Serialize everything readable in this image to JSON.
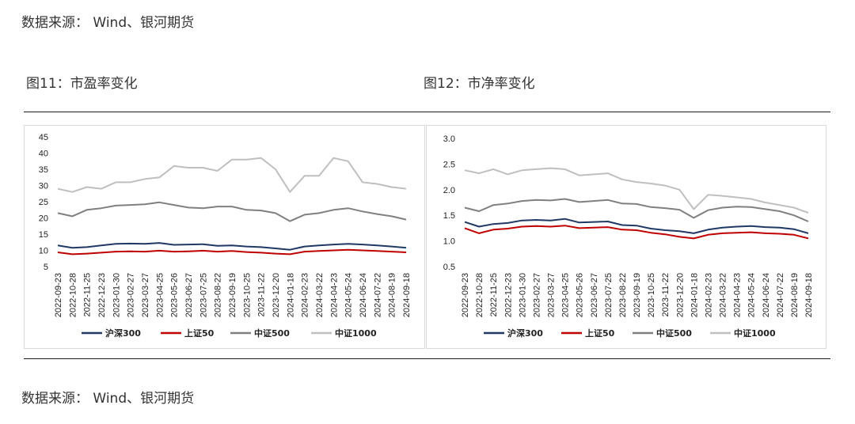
{
  "source_top": "数据来源： Wind、银河期货",
  "source_bottom": "数据来源： Wind、银河期货",
  "fig11_title": "图11：市盈率变化",
  "fig12_title": "图12：市净率变化",
  "colors": {
    "hs300": "#1f3864",
    "sz50": "#c00000",
    "zz500": "#808080",
    "zz1000": "#bfbfbf"
  },
  "chart_data": [
    {
      "type": "line",
      "title": "图11：市盈率变化",
      "x": [
        "2022-09-23",
        "2022-10-28",
        "2022-11-25",
        "2022-12-23",
        "2023-01-30",
        "2023-02-27",
        "2023-03-27",
        "2023-04-25",
        "2023-05-26",
        "2023-06-27",
        "2023-07-25",
        "2023-08-22",
        "2023-09-19",
        "2023-10-25",
        "2023-11-22",
        "2023-12-20",
        "2024-01-18",
        "2024-02-23",
        "2024-03-22",
        "2024-04-23",
        "2024-05-24",
        "2024-06-24",
        "2024-07-22",
        "2024-08-19",
        "2024-09-18"
      ],
      "ylim": [
        5,
        45
      ],
      "yticks": [
        5,
        10,
        15,
        20,
        25,
        30,
        35,
        40,
        45
      ],
      "legend_position": "bottom",
      "series": [
        {
          "name": "沪深300",
          "color": "#1f3864",
          "values": [
            11.5,
            10.8,
            11.0,
            11.5,
            12.0,
            12.1,
            12.0,
            12.3,
            11.7,
            11.8,
            11.9,
            11.4,
            11.5,
            11.2,
            11.0,
            10.6,
            10.2,
            11.2,
            11.5,
            11.8,
            12.0,
            11.8,
            11.5,
            11.2,
            10.8
          ]
        },
        {
          "name": "上证50",
          "color": "#c00000",
          "values": [
            9.4,
            8.8,
            9.0,
            9.3,
            9.6,
            9.7,
            9.6,
            9.9,
            9.6,
            9.7,
            9.9,
            9.6,
            9.8,
            9.5,
            9.3,
            9.0,
            8.8,
            9.6,
            9.8,
            10.0,
            10.2,
            10.0,
            9.8,
            9.6,
            9.4
          ]
        },
        {
          "name": "中证500",
          "color": "#808080",
          "values": [
            21.5,
            20.5,
            22.5,
            23.0,
            23.8,
            24.0,
            24.2,
            24.8,
            24.0,
            23.2,
            23.0,
            23.5,
            23.5,
            22.5,
            22.3,
            21.5,
            19.0,
            21.0,
            21.5,
            22.5,
            23.0,
            22.0,
            21.2,
            20.5,
            19.5
          ]
        },
        {
          "name": "中证1000",
          "color": "#bfbfbf",
          "values": [
            29.0,
            28.0,
            29.5,
            29.0,
            31.0,
            31.0,
            32.0,
            32.5,
            36.0,
            35.5,
            35.5,
            34.5,
            38.0,
            38.0,
            38.5,
            35.0,
            28.0,
            33.0,
            33.0,
            38.5,
            37.5,
            31.0,
            30.5,
            29.5,
            29.0
          ]
        }
      ]
    },
    {
      "type": "line",
      "title": "图12：市净率变化",
      "x": [
        "2022-09-23",
        "2022-10-28",
        "2022-11-25",
        "2022-12-23",
        "2023-01-30",
        "2023-02-27",
        "2023-03-27",
        "2023-04-25",
        "2023-05-26",
        "2023-06-27",
        "2023-07-25",
        "2023-08-22",
        "2023-09-19",
        "2023-10-25",
        "2023-11-22",
        "2023-12-20",
        "2024-01-18",
        "2024-02-23",
        "2024-03-22",
        "2024-04-23",
        "2024-05-24",
        "2024-06-24",
        "2024-07-22",
        "2024-08-19",
        "2024-09-18"
      ],
      "ylim": [
        0.5,
        3.0
      ],
      "yticks": [
        0.5,
        1.0,
        1.5,
        2.0,
        2.5,
        3.0
      ],
      "legend_position": "bottom",
      "series": [
        {
          "name": "沪深300",
          "color": "#1f3864",
          "values": [
            1.37,
            1.28,
            1.33,
            1.35,
            1.4,
            1.41,
            1.4,
            1.43,
            1.36,
            1.37,
            1.38,
            1.31,
            1.3,
            1.24,
            1.21,
            1.19,
            1.15,
            1.22,
            1.26,
            1.28,
            1.29,
            1.27,
            1.26,
            1.23,
            1.15
          ]
        },
        {
          "name": "上证50",
          "color": "#c00000",
          "values": [
            1.25,
            1.15,
            1.22,
            1.24,
            1.28,
            1.29,
            1.28,
            1.3,
            1.25,
            1.26,
            1.27,
            1.22,
            1.21,
            1.16,
            1.13,
            1.08,
            1.05,
            1.12,
            1.15,
            1.16,
            1.17,
            1.15,
            1.14,
            1.12,
            1.05
          ]
        },
        {
          "name": "中证500",
          "color": "#808080",
          "values": [
            1.65,
            1.58,
            1.7,
            1.73,
            1.78,
            1.8,
            1.79,
            1.82,
            1.76,
            1.78,
            1.8,
            1.73,
            1.72,
            1.66,
            1.64,
            1.61,
            1.45,
            1.6,
            1.65,
            1.67,
            1.66,
            1.62,
            1.58,
            1.5,
            1.38
          ]
        },
        {
          "name": "中证1000",
          "color": "#bfbfbf",
          "values": [
            2.38,
            2.32,
            2.4,
            2.3,
            2.38,
            2.4,
            2.42,
            2.4,
            2.28,
            2.3,
            2.32,
            2.2,
            2.15,
            2.12,
            2.08,
            2.0,
            1.62,
            1.9,
            1.88,
            1.85,
            1.82,
            1.75,
            1.7,
            1.65,
            1.55
          ]
        }
      ]
    }
  ]
}
